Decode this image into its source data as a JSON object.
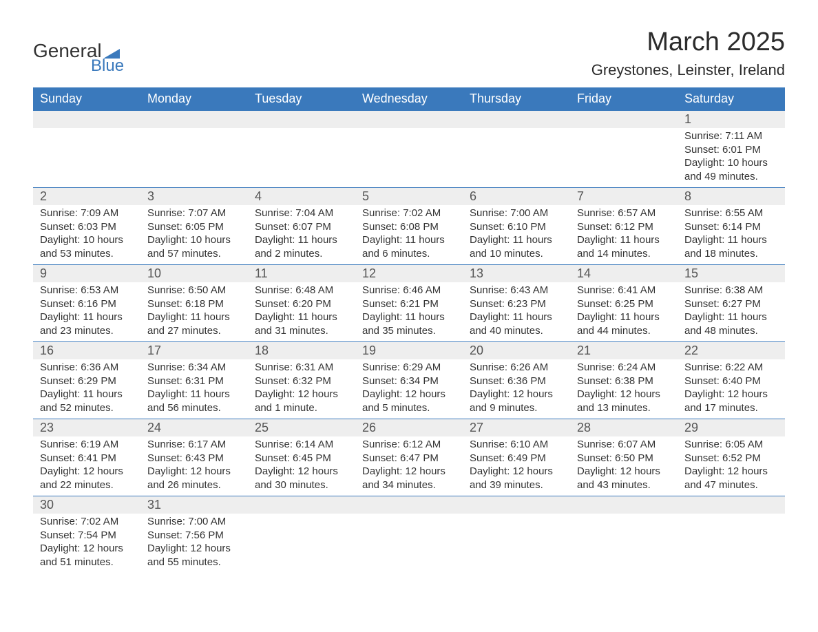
{
  "logo": {
    "top": "General",
    "bottom": "Blue"
  },
  "title": "March 2025",
  "location": "Greystones, Leinster, Ireland",
  "columns": [
    "Sunday",
    "Monday",
    "Tuesday",
    "Wednesday",
    "Thursday",
    "Friday",
    "Saturday"
  ],
  "labels": {
    "sunrise": "Sunrise:",
    "sunset": "Sunset:",
    "daylight": "Daylight:"
  },
  "colors": {
    "header_bg": "#3a79bc",
    "header_text": "#ffffff",
    "daynum_bg": "#eeeeee",
    "row_border": "#3a79bc",
    "text": "#333333",
    "logo_blue": "#3a79bc"
  },
  "fonts": {
    "title_size_pt": 28,
    "location_size_pt": 16,
    "header_size_pt": 14,
    "daynum_size_pt": 14,
    "body_size_pt": 11
  },
  "weeks": [
    [
      null,
      null,
      null,
      null,
      null,
      null,
      {
        "n": "1",
        "sunrise": "7:11 AM",
        "sunset": "6:01 PM",
        "daylight": "10 hours and 49 minutes."
      }
    ],
    [
      {
        "n": "2",
        "sunrise": "7:09 AM",
        "sunset": "6:03 PM",
        "daylight": "10 hours and 53 minutes."
      },
      {
        "n": "3",
        "sunrise": "7:07 AM",
        "sunset": "6:05 PM",
        "daylight": "10 hours and 57 minutes."
      },
      {
        "n": "4",
        "sunrise": "7:04 AM",
        "sunset": "6:07 PM",
        "daylight": "11 hours and 2 minutes."
      },
      {
        "n": "5",
        "sunrise": "7:02 AM",
        "sunset": "6:08 PM",
        "daylight": "11 hours and 6 minutes."
      },
      {
        "n": "6",
        "sunrise": "7:00 AM",
        "sunset": "6:10 PM",
        "daylight": "11 hours and 10 minutes."
      },
      {
        "n": "7",
        "sunrise": "6:57 AM",
        "sunset": "6:12 PM",
        "daylight": "11 hours and 14 minutes."
      },
      {
        "n": "8",
        "sunrise": "6:55 AM",
        "sunset": "6:14 PM",
        "daylight": "11 hours and 18 minutes."
      }
    ],
    [
      {
        "n": "9",
        "sunrise": "6:53 AM",
        "sunset": "6:16 PM",
        "daylight": "11 hours and 23 minutes."
      },
      {
        "n": "10",
        "sunrise": "6:50 AM",
        "sunset": "6:18 PM",
        "daylight": "11 hours and 27 minutes."
      },
      {
        "n": "11",
        "sunrise": "6:48 AM",
        "sunset": "6:20 PM",
        "daylight": "11 hours and 31 minutes."
      },
      {
        "n": "12",
        "sunrise": "6:46 AM",
        "sunset": "6:21 PM",
        "daylight": "11 hours and 35 minutes."
      },
      {
        "n": "13",
        "sunrise": "6:43 AM",
        "sunset": "6:23 PM",
        "daylight": "11 hours and 40 minutes."
      },
      {
        "n": "14",
        "sunrise": "6:41 AM",
        "sunset": "6:25 PM",
        "daylight": "11 hours and 44 minutes."
      },
      {
        "n": "15",
        "sunrise": "6:38 AM",
        "sunset": "6:27 PM",
        "daylight": "11 hours and 48 minutes."
      }
    ],
    [
      {
        "n": "16",
        "sunrise": "6:36 AM",
        "sunset": "6:29 PM",
        "daylight": "11 hours and 52 minutes."
      },
      {
        "n": "17",
        "sunrise": "6:34 AM",
        "sunset": "6:31 PM",
        "daylight": "11 hours and 56 minutes."
      },
      {
        "n": "18",
        "sunrise": "6:31 AM",
        "sunset": "6:32 PM",
        "daylight": "12 hours and 1 minute."
      },
      {
        "n": "19",
        "sunrise": "6:29 AM",
        "sunset": "6:34 PM",
        "daylight": "12 hours and 5 minutes."
      },
      {
        "n": "20",
        "sunrise": "6:26 AM",
        "sunset": "6:36 PM",
        "daylight": "12 hours and 9 minutes."
      },
      {
        "n": "21",
        "sunrise": "6:24 AM",
        "sunset": "6:38 PM",
        "daylight": "12 hours and 13 minutes."
      },
      {
        "n": "22",
        "sunrise": "6:22 AM",
        "sunset": "6:40 PM",
        "daylight": "12 hours and 17 minutes."
      }
    ],
    [
      {
        "n": "23",
        "sunrise": "6:19 AM",
        "sunset": "6:41 PM",
        "daylight": "12 hours and 22 minutes."
      },
      {
        "n": "24",
        "sunrise": "6:17 AM",
        "sunset": "6:43 PM",
        "daylight": "12 hours and 26 minutes."
      },
      {
        "n": "25",
        "sunrise": "6:14 AM",
        "sunset": "6:45 PM",
        "daylight": "12 hours and 30 minutes."
      },
      {
        "n": "26",
        "sunrise": "6:12 AM",
        "sunset": "6:47 PM",
        "daylight": "12 hours and 34 minutes."
      },
      {
        "n": "27",
        "sunrise": "6:10 AM",
        "sunset": "6:49 PM",
        "daylight": "12 hours and 39 minutes."
      },
      {
        "n": "28",
        "sunrise": "6:07 AM",
        "sunset": "6:50 PM",
        "daylight": "12 hours and 43 minutes."
      },
      {
        "n": "29",
        "sunrise": "6:05 AM",
        "sunset": "6:52 PM",
        "daylight": "12 hours and 47 minutes."
      }
    ],
    [
      {
        "n": "30",
        "sunrise": "7:02 AM",
        "sunset": "7:54 PM",
        "daylight": "12 hours and 51 minutes."
      },
      {
        "n": "31",
        "sunrise": "7:00 AM",
        "sunset": "7:56 PM",
        "daylight": "12 hours and 55 minutes."
      },
      null,
      null,
      null,
      null,
      null
    ]
  ]
}
